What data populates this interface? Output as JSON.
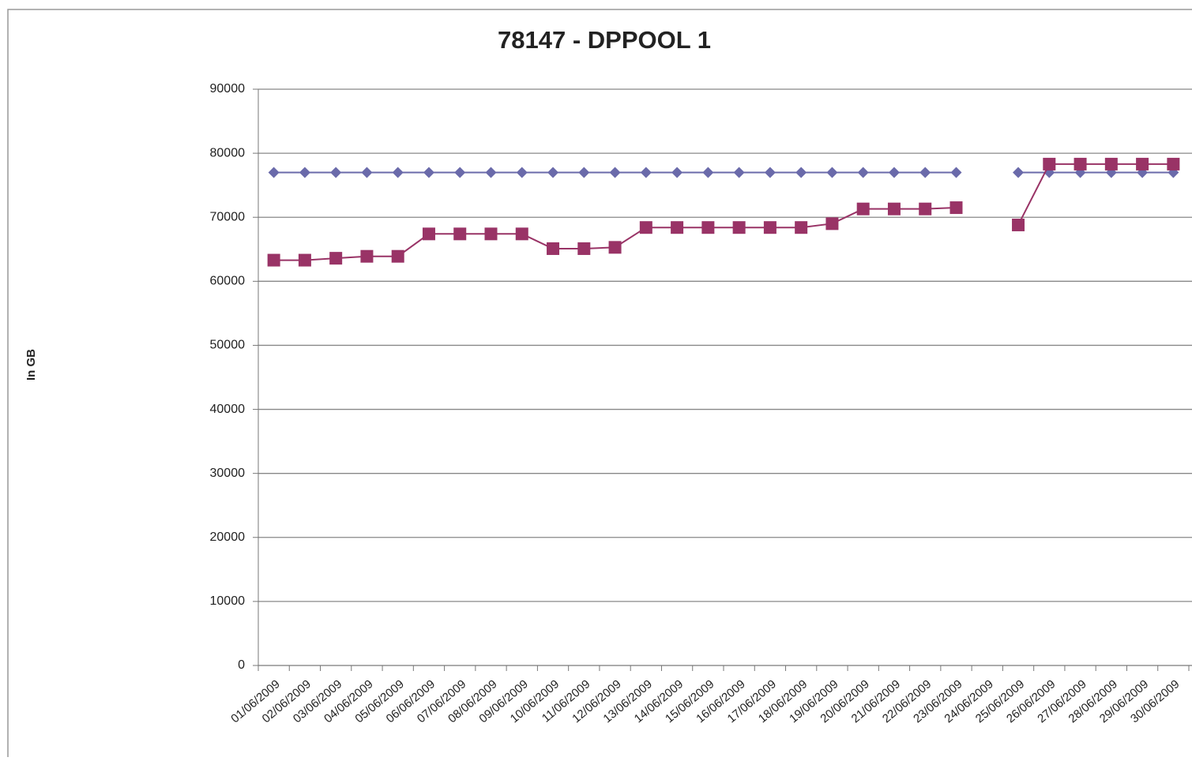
{
  "chart_data": {
    "type": "line",
    "title": "78147 - DPPOOL 1",
    "y_label": "In GB",
    "categories": [
      "01/06/2009",
      "02/06/2009",
      "03/06/2009",
      "04/06/2009",
      "05/06/2009",
      "06/06/2009",
      "07/06/2009",
      "08/06/2009",
      "09/06/2009",
      "10/06/2009",
      "11/06/2009",
      "12/06/2009",
      "13/06/2009",
      "14/06/2009",
      "15/06/2009",
      "16/06/2009",
      "17/06/2009",
      "18/06/2009",
      "19/06/2009",
      "20/06/2009",
      "21/06/2009",
      "22/06/2009",
      "23/06/2009",
      "24/06/2009",
      "25/06/2009",
      "26/06/2009",
      "27/06/2009",
      "28/06/2009",
      "29/06/2009",
      "30/06/2009"
    ],
    "series": [
      {
        "color": "#6a6aaa",
        "marker": "diamond",
        "values": [
          77000,
          77000,
          77000,
          77000,
          77000,
          77000,
          77000,
          77000,
          77000,
          77000,
          77000,
          77000,
          77000,
          77000,
          77000,
          77000,
          77000,
          77000,
          77000,
          77000,
          77000,
          77000,
          77000,
          null,
          77000,
          77000,
          77000,
          77000,
          77000,
          77000
        ]
      },
      {
        "color": "#993366",
        "marker": "square",
        "values": [
          63300,
          63300,
          63600,
          63900,
          63900,
          67400,
          67400,
          67400,
          67400,
          65100,
          65100,
          65300,
          68400,
          68400,
          68400,
          68400,
          68400,
          68400,
          69000,
          71300,
          71300,
          71300,
          71500,
          null,
          68800,
          78300,
          78300,
          78300,
          78300,
          78300
        ]
      }
    ],
    "ylim": [
      0,
      90000
    ],
    "yticks": [
      0,
      10000,
      20000,
      30000,
      40000,
      50000,
      60000,
      70000,
      80000,
      90000
    ],
    "grid": true
  }
}
